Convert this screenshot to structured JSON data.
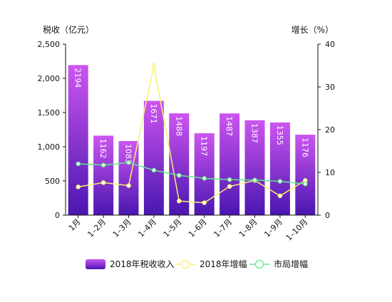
{
  "colors": {
    "bar_top": "#cc55f0",
    "bar_bottom": "#4a16b0",
    "growth_2018": "#f7f36a",
    "growth_city": "#5ee88a",
    "axis": "#111111"
  },
  "chart_data": {
    "type": "bar",
    "y_axis_left_label": "税收（亿元）",
    "y_axis_right_label": "增长（%）",
    "categories": [
      "1月",
      "1–2月",
      "1–3月",
      "1–4月",
      "1–5月",
      "1–6月",
      "1–7月",
      "1–8月",
      "1–9月",
      "1–10月"
    ],
    "ylim_left": [
      0,
      2500
    ],
    "yticks_left": [
      "0",
      "500",
      "1,000",
      "1,500",
      "2,000",
      "2,500"
    ],
    "ylim_right": [
      0,
      40
    ],
    "yticks_right": [
      "0",
      "10",
      "20",
      "30",
      "40"
    ],
    "grid": false,
    "legend_position": "bottom",
    "series": [
      {
        "name": "2018年税收收入",
        "type": "bar",
        "axis": "left",
        "values": [
          2194,
          1162,
          1083,
          1671,
          1488,
          1197,
          1487,
          1387,
          1355,
          1176
        ],
        "labels": [
          "2194",
          "1162",
          "1083",
          "1671",
          "1488",
          "1197",
          "1487",
          "1387",
          "1355",
          "1176"
        ]
      },
      {
        "name": "2018年增幅",
        "type": "line",
        "axis": "right",
        "values": [
          6.6,
          7.6,
          6.9,
          35.0,
          3.3,
          2.9,
          6.7,
          8.1,
          4.5,
          8.1
        ]
      },
      {
        "name": "市局增幅",
        "type": "line",
        "axis": "right",
        "values": [
          12.0,
          11.7,
          12.3,
          10.5,
          9.3,
          8.6,
          8.3,
          8.2,
          7.9,
          7.3
        ]
      }
    ]
  }
}
